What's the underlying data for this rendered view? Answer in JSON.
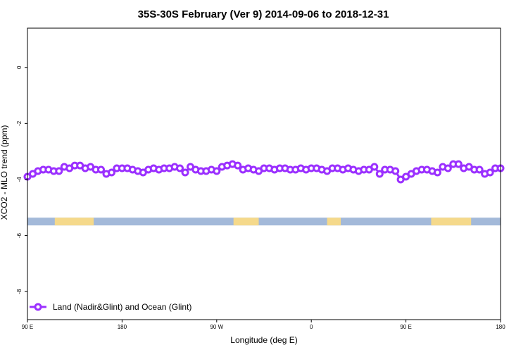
{
  "chart_data": {
    "type": "line",
    "title": "35S-30S February (Ver 9)   2014-09-06 to 2018-12-31",
    "xlabel": "Longitude (deg E)",
    "ylabel": "XCO2 - MLO trend (ppm)",
    "x_ticks": [
      {
        "value": 90,
        "label": "90 E"
      },
      {
        "value": 180,
        "label": "180"
      },
      {
        "value": 270,
        "label": "90 W"
      },
      {
        "value": 360,
        "label": "0"
      },
      {
        "value": 450,
        "label": "90 E"
      },
      {
        "value": 540,
        "label": "180"
      }
    ],
    "y_ticks": [
      0,
      -2,
      -4,
      -6,
      -8
    ],
    "xlim": [
      90,
      540
    ],
    "ylim": [
      -9.0,
      1.4
    ],
    "grid": false,
    "legend_position": "bottom-left",
    "land_ocean_strip": {
      "y_center": -5.5,
      "ocean_color": "#a3b9d9",
      "land_color": "#f5d98b",
      "land_segments": [
        [
          116,
          153
        ],
        [
          286,
          310
        ],
        [
          375,
          388
        ],
        [
          474,
          512
        ]
      ]
    },
    "series": [
      {
        "name": "Land (Nadir&Glint) and Ocean (Glint)",
        "color": "#9b30ff",
        "x": [
          90,
          95,
          100,
          105,
          110,
          115,
          120,
          125,
          130,
          135,
          140,
          145,
          150,
          155,
          160,
          165,
          170,
          175,
          180,
          185,
          190,
          195,
          200,
          205,
          210,
          215,
          220,
          225,
          230,
          235,
          240,
          245,
          250,
          255,
          260,
          265,
          270,
          275,
          280,
          285,
          290,
          295,
          300,
          305,
          310,
          315,
          320,
          325,
          330,
          335,
          340,
          345,
          350,
          355,
          360,
          365,
          370,
          375,
          380,
          385,
          390,
          395,
          400,
          405,
          410,
          415,
          420,
          425,
          430,
          435,
          440,
          445,
          450,
          455,
          460,
          465,
          470,
          475,
          480,
          485,
          490,
          495,
          500,
          505,
          510,
          515,
          520,
          525,
          530,
          535,
          540
        ],
        "values": [
          -3.9,
          -3.8,
          -3.7,
          -3.65,
          -3.65,
          -3.7,
          -3.7,
          -3.55,
          -3.6,
          -3.5,
          -3.5,
          -3.6,
          -3.55,
          -3.65,
          -3.65,
          -3.8,
          -3.75,
          -3.6,
          -3.6,
          -3.6,
          -3.65,
          -3.7,
          -3.75,
          -3.65,
          -3.6,
          -3.65,
          -3.6,
          -3.6,
          -3.55,
          -3.6,
          -3.75,
          -3.55,
          -3.65,
          -3.7,
          -3.7,
          -3.65,
          -3.7,
          -3.55,
          -3.5,
          -3.45,
          -3.5,
          -3.65,
          -3.6,
          -3.65,
          -3.7,
          -3.6,
          -3.6,
          -3.65,
          -3.6,
          -3.6,
          -3.65,
          -3.65,
          -3.6,
          -3.65,
          -3.6,
          -3.6,
          -3.65,
          -3.7,
          -3.6,
          -3.6,
          -3.65,
          -3.6,
          -3.65,
          -3.7,
          -3.65,
          -3.65,
          -3.55,
          -3.8,
          -3.65,
          -3.65,
          -3.7,
          -4.0,
          -3.9,
          -3.8,
          -3.7,
          -3.65,
          -3.65,
          -3.7,
          -3.75,
          -3.55,
          -3.6,
          -3.45,
          -3.45,
          -3.6,
          -3.55,
          -3.65,
          -3.65,
          -3.8,
          -3.75,
          -3.6,
          -3.6
        ]
      }
    ]
  }
}
